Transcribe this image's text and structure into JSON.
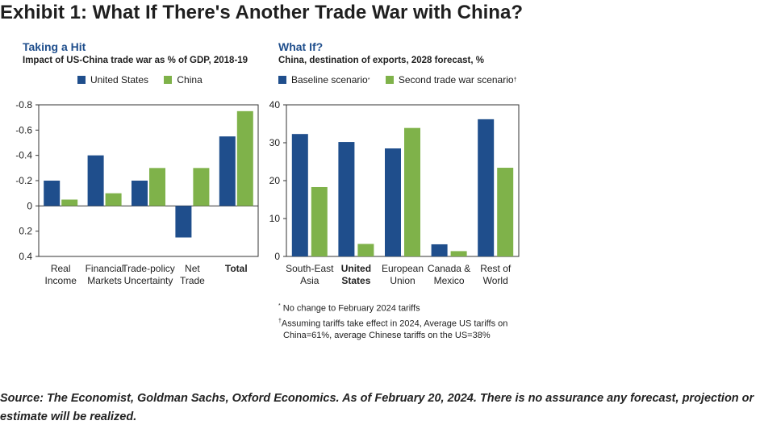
{
  "exhibit_title": "Exhibit 1: What If There's Another Trade War with China?",
  "colors": {
    "series_a": "#1f4e8c",
    "series_b": "#7fb24a",
    "title_blue": "#1f4e8c"
  },
  "chart_data": [
    {
      "type": "bar",
      "title": "Taking a Hit",
      "subtitle": "Impact of US-China trade war as % of GDP, 2018-19",
      "categories": [
        [
          "Real",
          "Income"
        ],
        [
          "Financial",
          "Markets"
        ],
        [
          "Trade-policy",
          "Uncertainty"
        ],
        [
          "Net",
          "Trade"
        ],
        [
          "Total"
        ]
      ],
      "bold_category_index": 4,
      "series": [
        {
          "name": "United States",
          "values": [
            -0.2,
            -0.4,
            -0.2,
            0.25,
            -0.55
          ]
        },
        {
          "name": "China",
          "values": [
            -0.05,
            -0.1,
            -0.3,
            -0.3,
            -0.75
          ]
        }
      ],
      "y_ticks": [
        "-0.8",
        "-0.6",
        "-0.4",
        "-0.2",
        "0",
        "0.2",
        "0.4"
      ],
      "ylim": [
        -0.8,
        0.4
      ],
      "y_inverted": true,
      "legend": "top-left",
      "grid": false
    },
    {
      "type": "bar",
      "title": "What If?",
      "subtitle": "China, destination of exports, 2028 forecast, %",
      "categories": [
        [
          "South-East",
          "Asia"
        ],
        [
          "United",
          "States"
        ],
        [
          "European",
          "Union"
        ],
        [
          "Canada &",
          "Mexico"
        ],
        [
          "Rest of",
          "World"
        ]
      ],
      "bold_category_index": 1,
      "series": [
        {
          "name": "Baseline scenario",
          "marker": "*",
          "values": [
            32.3,
            30.2,
            28.5,
            3.2,
            36.2
          ]
        },
        {
          "name": "Second trade war scenario",
          "marker": "†",
          "values": [
            18.3,
            3.3,
            33.9,
            1.4,
            23.4
          ]
        }
      ],
      "y_ticks": [
        "0",
        "10",
        "20",
        "30",
        "40"
      ],
      "ylim": [
        0,
        40
      ],
      "legend": "top-left",
      "grid": false
    }
  ],
  "notes": {
    "n1_marker": "*",
    "n1_text": "No change to February 2024 tariffs",
    "n2_marker": "†",
    "n2_line1": "Assuming tariffs take effect in 2024, Average US tariffs on",
    "n2_line2": "China=61%, average Chinese tariffs on the US=38%"
  },
  "source": "Source: The Economist, Goldman Sachs, Oxford Economics. As of February 20, 2024. There is no assurance any forecast, projection or estimate will be realized."
}
